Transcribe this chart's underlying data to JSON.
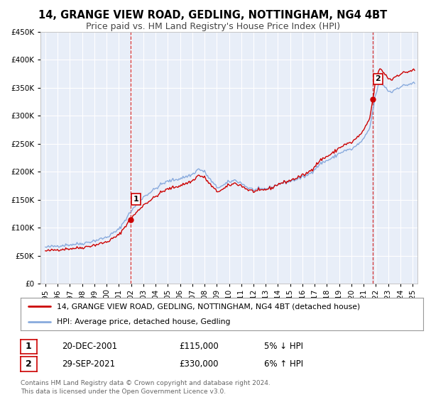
{
  "title": "14, GRANGE VIEW ROAD, GEDLING, NOTTINGHAM, NG4 4BT",
  "subtitle": "Price paid vs. HM Land Registry's House Price Index (HPI)",
  "legend_line1": "14, GRANGE VIEW ROAD, GEDLING, NOTTINGHAM, NG4 4BT (detached house)",
  "legend_line2": "HPI: Average price, detached house, Gedling",
  "annotation1_label": "1",
  "annotation1_date": "20-DEC-2001",
  "annotation1_price": "£115,000",
  "annotation1_hpi": "5% ↓ HPI",
  "annotation2_label": "2",
  "annotation2_date": "29-SEP-2021",
  "annotation2_price": "£330,000",
  "annotation2_hpi": "6% ↑ HPI",
  "footer": "Contains HM Land Registry data © Crown copyright and database right 2024.\nThis data is licensed under the Open Government Licence v3.0.",
  "sale1_x": 2001.97,
  "sale1_y": 115000,
  "sale2_x": 2021.75,
  "sale2_y": 330000,
  "price_line_color": "#cc0000",
  "hpi_line_color": "#88aadd",
  "vline_color": "#cc0000",
  "sale_marker_color": "#cc0000",
  "ylim": [
    0,
    450000
  ],
  "xlim_start": 1994.6,
  "xlim_end": 2025.4,
  "background_color": "#ffffff",
  "plot_bg_color": "#e8eef8",
  "grid_color": "#ffffff",
  "title_fontsize": 10.5,
  "subtitle_fontsize": 9,
  "tick_fontsize": 7.5,
  "legend_fontsize": 8,
  "annot_fontsize": 8.5,
  "footer_fontsize": 6.5
}
